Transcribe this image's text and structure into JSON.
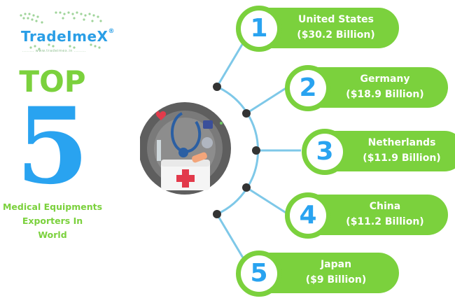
{
  "logo": {
    "name": "TradeImeX",
    "registered": "®",
    "tagline": "........ www.tradeimex.in ........"
  },
  "title": {
    "top": "TOP",
    "number": "5",
    "caption": [
      "Medical Equipments",
      "Exporters In",
      "World"
    ]
  },
  "colors": {
    "green": "#7bd13d",
    "blue": "#29a3f0",
    "line": "#7ec8e8",
    "dot": "#333333"
  },
  "ranks": [
    {
      "rank": "1",
      "country": "United States",
      "value": "($30.2 Billion)"
    },
    {
      "rank": "2",
      "country": "Germany",
      "value": "($18.9 Billion)"
    },
    {
      "rank": "3",
      "country": "Netherlands",
      "value": "($11.9 Billion)"
    },
    {
      "rank": "4",
      "country": "China",
      "value": "($11.2 Billion)"
    },
    {
      "rank": "5",
      "country": "Japan",
      "value": "($9 Billion)"
    }
  ]
}
